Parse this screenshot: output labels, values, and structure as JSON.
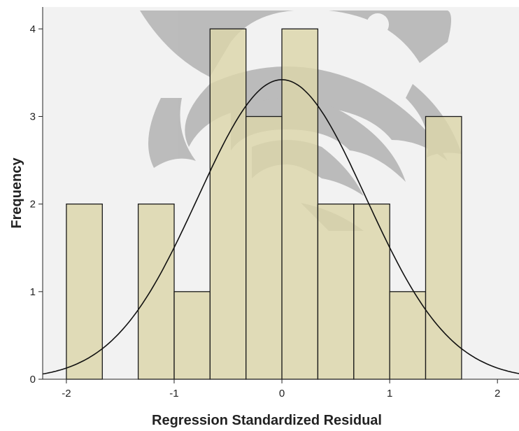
{
  "chart_data": {
    "type": "bar",
    "subtype": "histogram",
    "title": "",
    "xlabel": "Regression Standardized Residual",
    "ylabel": "Frequency",
    "xlim": [
      -2.22,
      2.2
    ],
    "ylim": [
      0,
      4.25
    ],
    "xticks": [
      "-2",
      "-1",
      "0",
      "1",
      "2"
    ],
    "yticks": [
      "0",
      "1",
      "2",
      "3",
      "4"
    ],
    "bin_width": 0.3333,
    "bins": [
      {
        "start": -2.0,
        "end": -1.6667,
        "count": 2
      },
      {
        "start": -1.6667,
        "end": -1.3333,
        "count": 0
      },
      {
        "start": -1.3333,
        "end": -1.0,
        "count": 2
      },
      {
        "start": -1.0,
        "end": -0.6667,
        "count": 1
      },
      {
        "start": -0.6667,
        "end": -0.3333,
        "count": 4
      },
      {
        "start": -0.3333,
        "end": 0.0,
        "count": 3
      },
      {
        "start": 0.0,
        "end": 0.3333,
        "count": 4
      },
      {
        "start": 0.3333,
        "end": 0.6667,
        "count": 2
      },
      {
        "start": 0.6667,
        "end": 1.0,
        "count": 2
      },
      {
        "start": 1.0,
        "end": 1.3333,
        "count": 1
      },
      {
        "start": 1.3333,
        "end": 1.6667,
        "count": 3
      }
    ],
    "normal_curve": {
      "mean": 0.0,
      "std": 0.78,
      "peak": 3.42
    },
    "grid": false,
    "legend": "none",
    "colors": {
      "bar_fill": "#dcd6a9",
      "bar_stroke": "#1a1a1a",
      "plot_background": "#f2f2f2",
      "curve": "#111111",
      "watermark": "#8f8f8f"
    }
  }
}
